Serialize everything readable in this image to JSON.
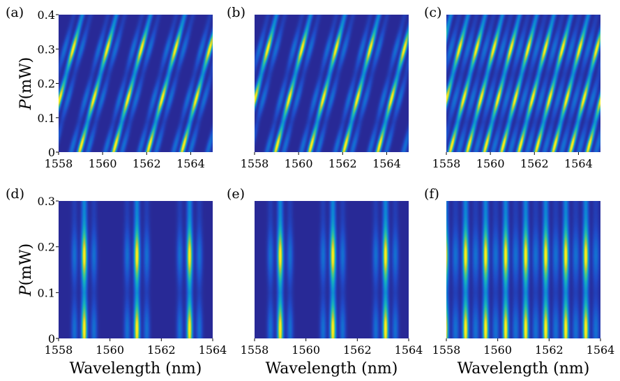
{
  "figure": {
    "shared_ylabel_italic": "P",
    "shared_ylabel_unit": "(mW)",
    "shared_xlabel": "Wavelength (nm)"
  },
  "chart_data": [
    {
      "id": "a",
      "panel_label": "(a)",
      "type": "heatmap",
      "xlim": [
        1558,
        1565
      ],
      "ylim": [
        0,
        0.4
      ],
      "xticks": [
        "1558",
        "1560",
        "1562",
        "1564"
      ],
      "yticks": [
        "0",
        "0.1",
        "0.2",
        "0.3",
        "0.4"
      ],
      "ylabel": "P (mW)",
      "xlabel": "",
      "x_tick_values": [
        1558,
        1560,
        1562,
        1564
      ],
      "y_tick_values": [
        0,
        0.1,
        0.2,
        0.3,
        0.4
      ],
      "peak_period_nm": 1.55,
      "peak_offset_nm": 1558.95,
      "power_shift_nm_per_mW": 4.2,
      "power_bands_mW": [
        0.02,
        0.155,
        0.3
      ],
      "band_sigma_mW": 0.045,
      "color_min": "#2b1a7c",
      "color_max": "#f5e93b"
    },
    {
      "id": "b",
      "panel_label": "(b)",
      "type": "heatmap",
      "xlim": [
        1558,
        1565
      ],
      "ylim": [
        0,
        0.4
      ],
      "xticks": [
        "1558",
        "1560",
        "1562",
        "1564"
      ],
      "yticks": [],
      "ylabel": "",
      "xlabel": "",
      "x_tick_values": [
        1558,
        1560,
        1562,
        1564
      ],
      "y_tick_values": [],
      "peak_period_nm": 1.55,
      "peak_offset_nm": 1558.95,
      "power_shift_nm_per_mW": 4.0,
      "power_bands_mW": [
        0.02,
        0.155,
        0.3
      ],
      "band_sigma_mW": 0.045,
      "color_min": "#2b1a7c",
      "color_max": "#f5e93b"
    },
    {
      "id": "c",
      "panel_label": "(c)",
      "type": "heatmap",
      "xlim": [
        1558,
        1565
      ],
      "ylim": [
        0,
        0.4
      ],
      "xticks": [
        "1558",
        "1560",
        "1562",
        "1564"
      ],
      "yticks": [],
      "ylabel": "",
      "xlabel": "",
      "x_tick_values": [
        1558,
        1560,
        1562,
        1564
      ],
      "y_tick_values": [],
      "peak_period_nm": 0.78,
      "peak_offset_nm": 1558.95,
      "power_shift_nm_per_mW": 4.0,
      "power_bands_mW": [
        0.02,
        0.155,
        0.3
      ],
      "band_sigma_mW": 0.045,
      "color_min": "#2b1a7c",
      "color_max": "#f5e93b"
    },
    {
      "id": "d",
      "panel_label": "(d)",
      "type": "heatmap",
      "xlim": [
        1558,
        1564
      ],
      "ylim": [
        0,
        0.3
      ],
      "xticks": [
        "1558",
        "1560",
        "1562",
        "1564"
      ],
      "yticks": [
        "0",
        "0.1",
        "0.2",
        "0.3"
      ],
      "ylabel": "P (mW)",
      "xlabel": "Wavelength (nm)",
      "x_tick_values": [
        1558,
        1560,
        1562,
        1564
      ],
      "y_tick_values": [
        0,
        0.1,
        0.2,
        0.3
      ],
      "peak_period_nm": 2.05,
      "peak_offset_nm": 1559.0,
      "power_shift_nm_per_mW": 0.0,
      "power_bands_mW": [
        0.02,
        0.18
      ],
      "band_sigma_mW": 0.05,
      "color_min": "#2b1a7c",
      "color_max": "#f5e93b"
    },
    {
      "id": "e",
      "panel_label": "(e)",
      "type": "heatmap",
      "xlim": [
        1558,
        1564
      ],
      "ylim": [
        0,
        0.3
      ],
      "xticks": [
        "1558",
        "1560",
        "1562",
        "1564"
      ],
      "yticks": [],
      "ylabel": "",
      "xlabel": "Wavelength (nm)",
      "x_tick_values": [
        1558,
        1560,
        1562,
        1564
      ],
      "y_tick_values": [],
      "peak_period_nm": 2.05,
      "peak_offset_nm": 1559.0,
      "power_shift_nm_per_mW": 0.0,
      "power_bands_mW": [
        0.02,
        0.18
      ],
      "band_sigma_mW": 0.05,
      "color_min": "#2b1a7c",
      "color_max": "#f5e93b"
    },
    {
      "id": "f",
      "panel_label": "(f)",
      "type": "heatmap",
      "xlim": [
        1558,
        1564
      ],
      "ylim": [
        0,
        0.3
      ],
      "xticks": [
        "1558",
        "1560",
        "1562",
        "1564"
      ],
      "yticks": [],
      "ylabel": "",
      "xlabel": "Wavelength (nm)",
      "x_tick_values": [
        1558,
        1560,
        1562,
        1564
      ],
      "y_tick_values": [],
      "peak_period_nm": 0.78,
      "peak_offset_nm": 1558.75,
      "power_shift_nm_per_mW": 0.0,
      "power_bands_mW": [
        0.02,
        0.18
      ],
      "band_sigma_mW": 0.05,
      "color_min": "#2b1a7c",
      "color_max": "#f5e93b"
    }
  ]
}
